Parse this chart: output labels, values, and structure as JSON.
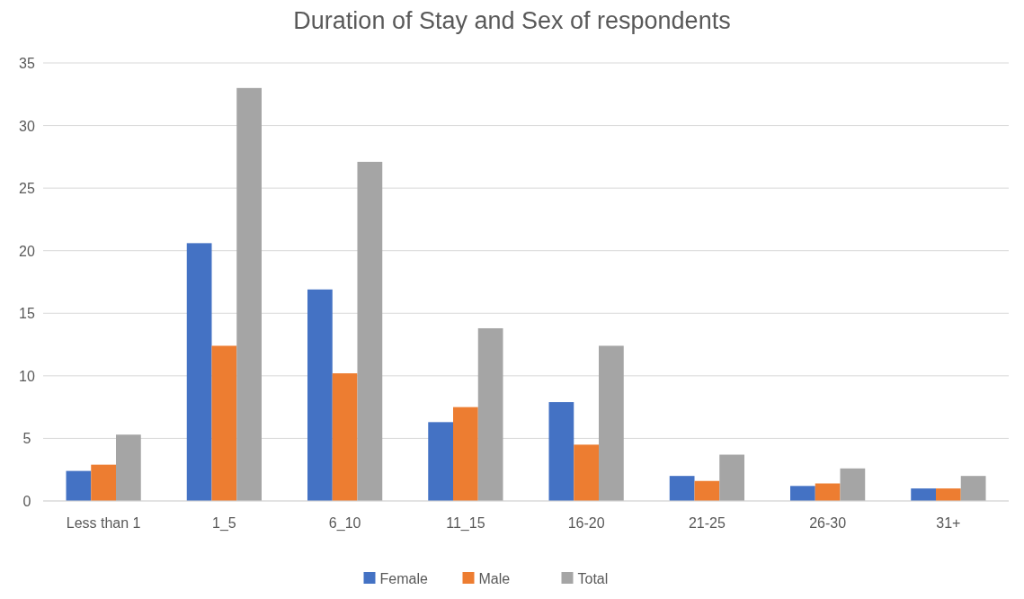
{
  "chart_data": {
    "type": "bar",
    "title": "Duration of Stay and Sex of respondents",
    "categories": [
      "Less than 1",
      "1_5",
      "6_10",
      "11_15",
      "16-20",
      "21-25",
      "26-30",
      "31+"
    ],
    "series": [
      {
        "name": "Female",
        "color": "#4472c4",
        "values": [
          2.4,
          20.6,
          16.9,
          6.3,
          7.9,
          2.0,
          1.2,
          1.0
        ]
      },
      {
        "name": "Male",
        "color": "#ed7d31",
        "values": [
          2.9,
          12.4,
          10.2,
          7.5,
          4.5,
          1.6,
          1.4,
          1.0
        ]
      },
      {
        "name": "Total",
        "color": "#a5a5a5",
        "values": [
          5.3,
          33,
          27.1,
          13.8,
          12.4,
          3.7,
          2.6,
          2.0
        ]
      }
    ],
    "ylim": [
      0,
      35
    ],
    "yticks": [
      0,
      5,
      10,
      15,
      20,
      25,
      30,
      35
    ],
    "grid": "y",
    "legend": "bottom"
  }
}
